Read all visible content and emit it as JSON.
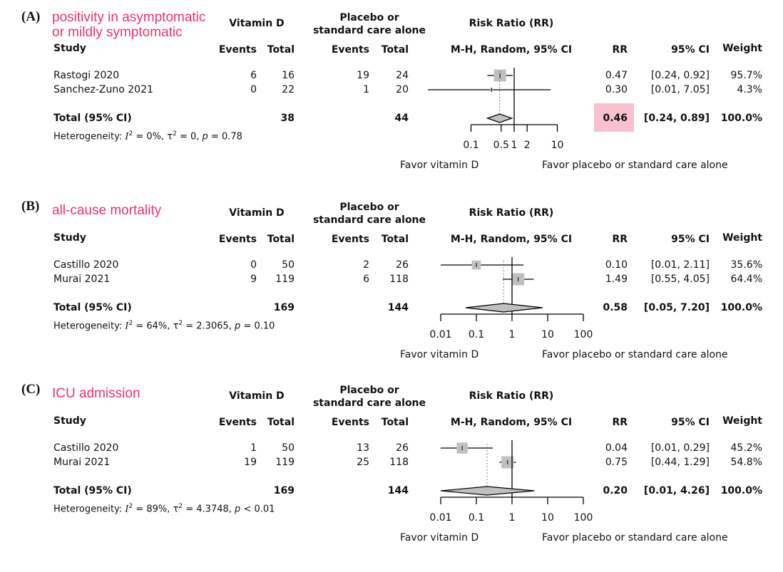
{
  "headers": {
    "vitamin_d": "Vitamin D",
    "placebo_line1": "Placebo or",
    "placebo_line2": "standard care alone",
    "risk_ratio": "Risk Ratio (RR)",
    "study": "Study",
    "events": "Events",
    "total": "Total",
    "method": "M-H, Random, 95% CI",
    "rr": "RR",
    "ci": "95% CI",
    "weight": "Weight",
    "total_row": "Total (95% CI)",
    "favor_left": "Favor vitamin D",
    "favor_right": "Favor placebo or standard care alone",
    "het_label": "Heterogeneity:",
    "i_sym": "I",
    "tau_sym": "τ",
    "p_sym": "p",
    "sup2": "2"
  },
  "colors": {
    "title": "#e8336b",
    "highlight": "#f9c0d0",
    "box": "#c0c0c0"
  },
  "chart_data": [
    {
      "type": "forest",
      "label": "(A)",
      "title_lines": [
        "positivity in asymptomatic",
        "or mildly symptomatic"
      ],
      "ticks": [
        0.1,
        0.5,
        1,
        2,
        10
      ],
      "tick_labels": [
        "0.1",
        "0.5",
        "1",
        "2",
        "10"
      ],
      "studies": [
        {
          "name": "Rastogi 2020",
          "ev1": "6",
          "tot1": "16",
          "ev2": "19",
          "tot2": "24",
          "rr": 0.47,
          "lo": 0.24,
          "hi": 0.92,
          "rr_text": "0.47",
          "ci_text": "[0.24, 0.92]",
          "weight": 95.7,
          "weight_text": "95.7%"
        },
        {
          "name": "Sanchez-Zuno 2021",
          "ev1": "0",
          "tot1": "22",
          "ev2": "1",
          "tot2": "20",
          "rr": 0.3,
          "lo": 0.01,
          "hi": 7.05,
          "rr_text": "0.30",
          "ci_text": "[0.01, 7.05]",
          "weight": 4.3,
          "weight_text": "4.3%"
        }
      ],
      "total": {
        "tot1": "38",
        "tot2": "44",
        "rr": 0.46,
        "lo": 0.24,
        "hi": 0.89,
        "rr_text": "0.46",
        "ci_text": "[0.24, 0.89]",
        "weight_text": "100.0%",
        "highlighted": true
      },
      "het": {
        "i2": " = 0%, ",
        "tau2": " = 0, ",
        "p": " = 0.78"
      }
    },
    {
      "type": "forest",
      "label": "(B)",
      "title_lines": [
        "all-cause mortality"
      ],
      "ticks": [
        0.01,
        0.1,
        1,
        10,
        100
      ],
      "tick_labels": [
        "0.01",
        "0.1",
        "1",
        "10",
        "100"
      ],
      "studies": [
        {
          "name": "Castillo 2020",
          "ev1": "0",
          "tot1": "50",
          "ev2": "2",
          "tot2": "26",
          "rr": 0.1,
          "lo": 0.01,
          "hi": 2.11,
          "rr_text": "0.10",
          "ci_text": "[0.01, 2.11]",
          "weight": 35.6,
          "weight_text": "35.6%"
        },
        {
          "name": "Murai 2021",
          "ev1": "9",
          "tot1": "119",
          "ev2": "6",
          "tot2": "118",
          "rr": 1.49,
          "lo": 0.55,
          "hi": 4.05,
          "rr_text": "1.49",
          "ci_text": "[0.55, 4.05]",
          "weight": 64.4,
          "weight_text": "64.4%"
        }
      ],
      "total": {
        "tot1": "169",
        "tot2": "144",
        "rr": 0.58,
        "lo": 0.05,
        "hi": 7.2,
        "rr_text": "0.58",
        "ci_text": "[0.05, 7.20]",
        "weight_text": "100.0%",
        "highlighted": false
      },
      "het": {
        "i2": " = 64%, ",
        "tau2": " = 2.3065, ",
        "p": " = 0.10"
      }
    },
    {
      "type": "forest",
      "label": "(C)",
      "title_lines": [
        "ICU admission"
      ],
      "ticks": [
        0.01,
        0.1,
        1,
        10,
        100
      ],
      "tick_labels": [
        "0.01",
        "0.1",
        "1",
        "10",
        "100"
      ],
      "studies": [
        {
          "name": "Castillo 2020",
          "ev1": "1",
          "tot1": "50",
          "ev2": "13",
          "tot2": "26",
          "rr": 0.04,
          "lo": 0.01,
          "hi": 0.29,
          "rr_text": "0.04",
          "ci_text": "[0.01, 0.29]",
          "weight": 45.2,
          "weight_text": "45.2%"
        },
        {
          "name": "Murai 2021",
          "ev1": "19",
          "tot1": "119",
          "ev2": "25",
          "tot2": "118",
          "rr": 0.75,
          "lo": 0.44,
          "hi": 1.29,
          "rr_text": "0.75",
          "ci_text": "[0.44, 1.29]",
          "weight": 54.8,
          "weight_text": "54.8%"
        }
      ],
      "total": {
        "tot1": "169",
        "tot2": "144",
        "rr": 0.2,
        "lo": 0.01,
        "hi": 4.26,
        "rr_text": "0.20",
        "ci_text": "[0.01, 4.26]",
        "weight_text": "100.0%",
        "highlighted": false
      },
      "het": {
        "i2": " = 89%, ",
        "tau2": " = 4.3748, ",
        "p": " < 0.01"
      }
    }
  ]
}
